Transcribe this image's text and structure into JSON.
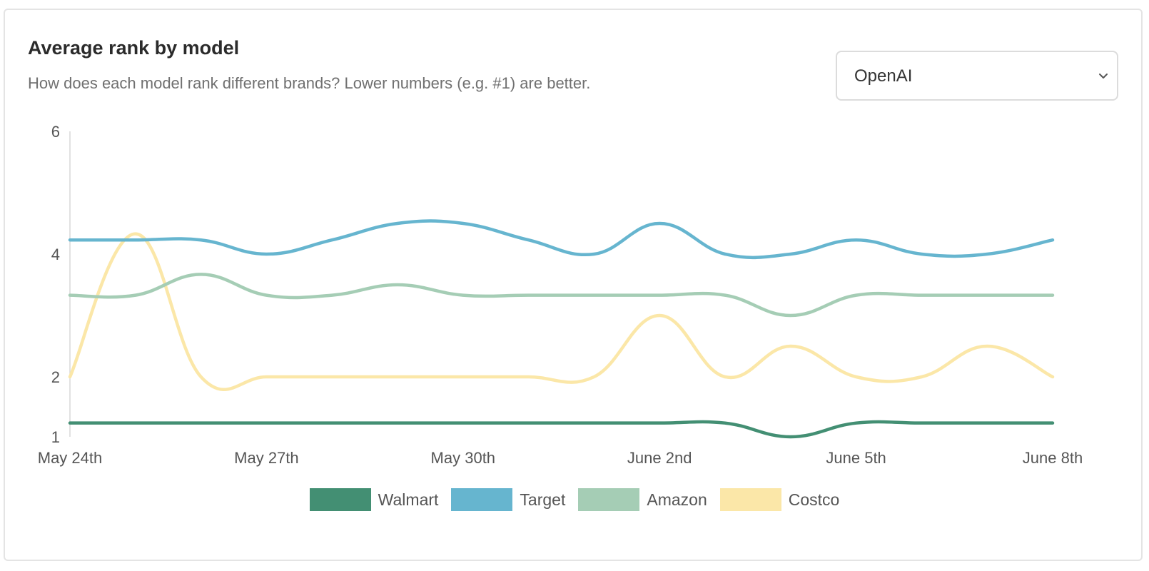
{
  "header": {
    "title": "Average rank by model",
    "subtitle": "How does each model rank different brands? Lower numbers (e.g. #1) are better."
  },
  "model_select": {
    "value": "OpenAI",
    "icon": "chevron-down-icon"
  },
  "chart_data": {
    "type": "line",
    "title": "Average rank by model",
    "x_ticks": [
      "May 24th",
      "May 27th",
      "May 30th",
      "June 2nd",
      "June 5th",
      "June 8th"
    ],
    "y_ticks": [
      6,
      4,
      2,
      1
    ],
    "x": [
      "May 24th",
      "May 25th",
      "May 26th",
      "May 27th",
      "May 28th",
      "May 29th",
      "May 30th",
      "May 31st",
      "June 1st",
      "June 2nd",
      "June 3rd",
      "June 4th",
      "June 5th",
      "June 6th",
      "June 7th",
      "June 8th"
    ],
    "ylim": [
      1,
      6
    ],
    "grid": false,
    "legend_position": "bottom",
    "series": [
      {
        "name": "Walmart",
        "color": "#438f73",
        "values": [
          1.23,
          1.23,
          1.23,
          1.23,
          1.23,
          1.23,
          1.23,
          1.23,
          1.23,
          1.23,
          1.23,
          1.0,
          1.23,
          1.23,
          1.23,
          1.23
        ]
      },
      {
        "name": "Target",
        "color": "#66b5cf",
        "values": [
          4.23,
          4.23,
          4.23,
          4.0,
          4.23,
          4.5,
          4.5,
          4.23,
          4.0,
          4.5,
          4.0,
          4.0,
          4.23,
          4.0,
          4.0,
          4.23
        ]
      },
      {
        "name": "Amazon",
        "color": "#a5cdb5",
        "values": [
          3.33,
          3.33,
          3.67,
          3.33,
          3.33,
          3.5,
          3.33,
          3.33,
          3.33,
          3.33,
          3.33,
          3.0,
          3.33,
          3.33,
          3.33,
          3.33
        ]
      },
      {
        "name": "Costco",
        "color": "#fbe7a8",
        "values": [
          2.0,
          4.33,
          2.0,
          2.0,
          2.0,
          2.0,
          2.0,
          2.0,
          2.0,
          3.0,
          2.0,
          2.5,
          2.0,
          2.0,
          2.5,
          2.0
        ]
      }
    ]
  }
}
